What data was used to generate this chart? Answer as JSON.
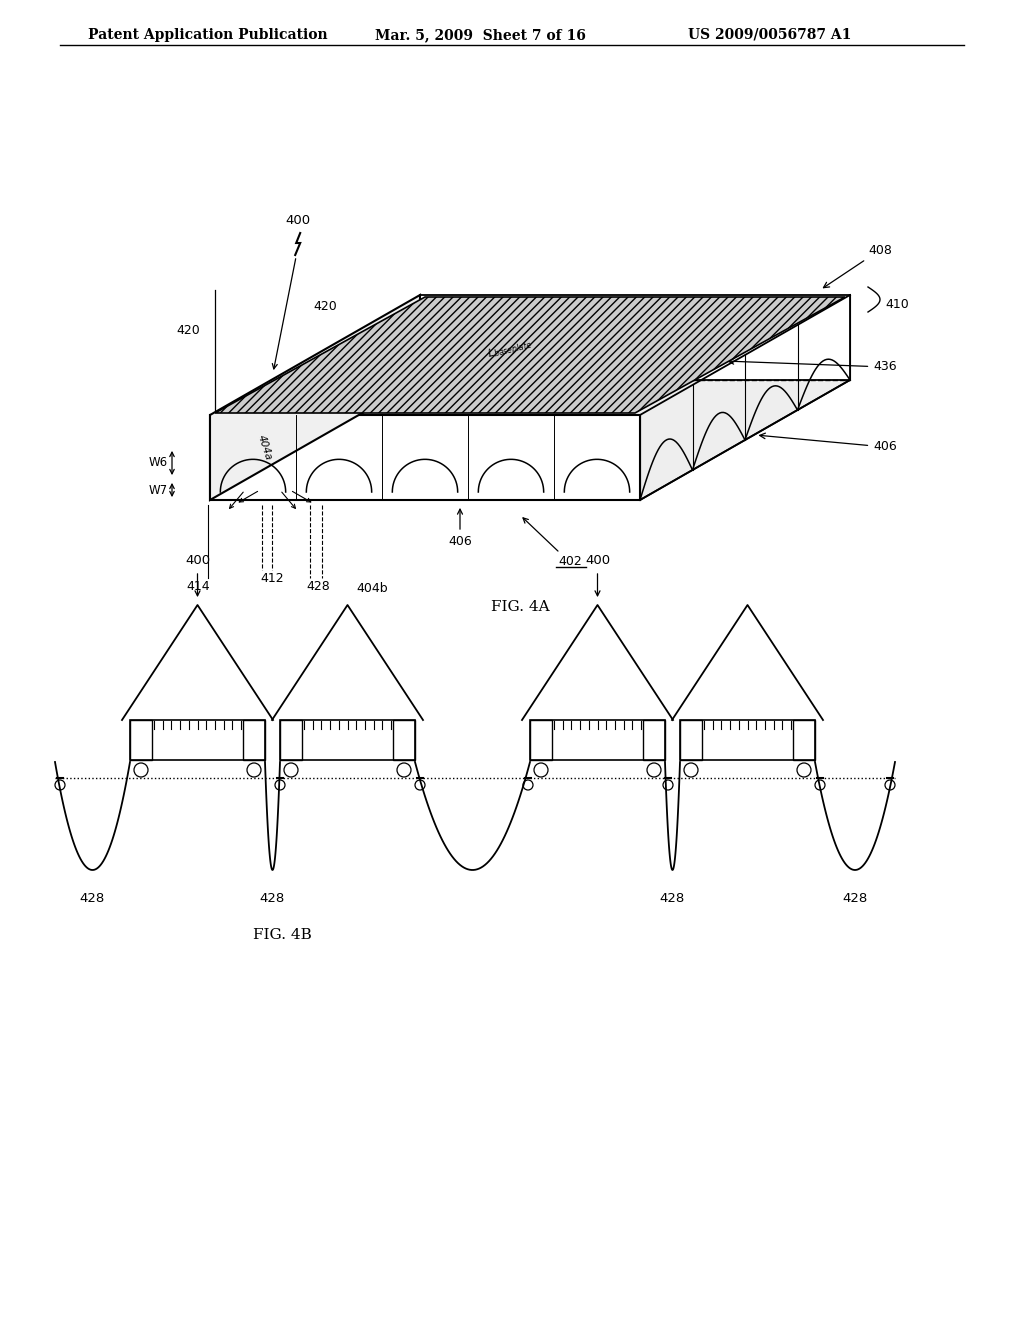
{
  "background_color": "#ffffff",
  "header_text": "Patent Application Publication",
  "header_date": "Mar. 5, 2009  Sheet 7 of 16",
  "header_patent": "US 2009/0056787 A1",
  "fig4a_caption": "FIG. 4A",
  "fig4b_caption": "FIG. 4B",
  "line_color": "#000000"
}
